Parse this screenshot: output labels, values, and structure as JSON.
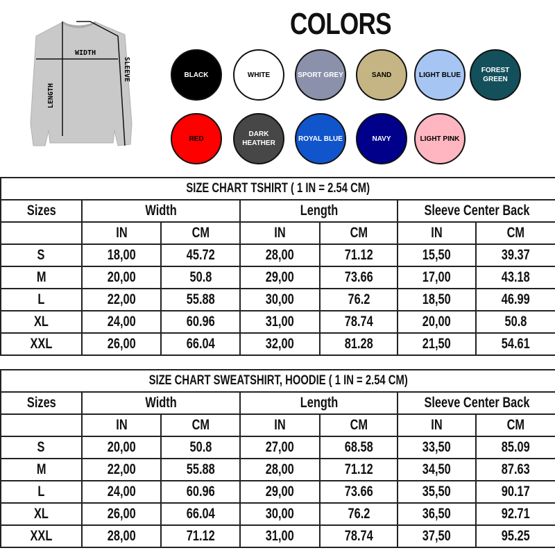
{
  "illustration": {
    "labels": {
      "width": "WIDTH",
      "length": "LENGTH",
      "sleeve": "SLEEVE"
    }
  },
  "colors": {
    "title": "COLORS",
    "swatches": [
      {
        "label": "BLACK",
        "fill": "#000000",
        "text": "#ffffff"
      },
      {
        "label": "WHITE",
        "fill": "#ffffff",
        "text": "#000000"
      },
      {
        "label": "SPORT GREY",
        "fill": "#8c91ab",
        "text": "#ffffff"
      },
      {
        "label": "SAND",
        "fill": "#c6b584",
        "text": "#000000"
      },
      {
        "label": "LIGHT BLUE",
        "fill": "#a6c5f2",
        "text": "#000000"
      },
      {
        "label": "FOREST GREEN",
        "fill": "#14505c",
        "text": "#ffffff"
      },
      {
        "label": "RED",
        "fill": "#ff0000",
        "text": "#000000"
      },
      {
        "label": "DARK HEATHER",
        "fill": "#474747",
        "text": "#ffffff"
      },
      {
        "label": "ROYAL BLUE",
        "fill": "#1155cc",
        "text": "#ffffff"
      },
      {
        "label": "NAVY",
        "fill": "#00008b",
        "text": "#ffffff"
      },
      {
        "label": "LIGHT PINK",
        "fill": "#ffb6c1",
        "text": "#000000"
      }
    ]
  },
  "tables": [
    {
      "title": "SIZE CHART TSHIRT ( 1 IN = 2.54 CM)",
      "headers": [
        "Sizes",
        "Width",
        "Length",
        "Sleeve Center Back"
      ],
      "units": [
        "IN",
        "CM",
        "IN",
        "CM",
        "IN",
        "CM"
      ],
      "rows": [
        [
          "S",
          "18,00",
          "45.72",
          "28,00",
          "71.12",
          "15,50",
          "39.37"
        ],
        [
          "M",
          "20,00",
          "50.8",
          "29,00",
          "73.66",
          "17,00",
          "43.18"
        ],
        [
          "L",
          "22,00",
          "55.88",
          "30,00",
          "76.2",
          "18,50",
          "46.99"
        ],
        [
          "XL",
          "24,00",
          "60.96",
          "31,00",
          "78.74",
          "20,00",
          "50.8"
        ],
        [
          "XXL",
          "26,00",
          "66.04",
          "32,00",
          "81.28",
          "21,50",
          "54.61"
        ]
      ]
    },
    {
      "title": "SIZE CHART  SWEATSHIRT,  HOODIE ( 1 IN = 2.54 CM)",
      "headers": [
        "Sizes",
        "Width",
        "Length",
        "Sleeve Center Back"
      ],
      "units": [
        "IN",
        "CM",
        "IN",
        "CM",
        "IN",
        "CM"
      ],
      "rows": [
        [
          "S",
          "20,00",
          "50.8",
          "27,00",
          "68.58",
          "33,50",
          "85.09"
        ],
        [
          "M",
          "22,00",
          "55.88",
          "28,00",
          "71.12",
          "34,50",
          "87.63"
        ],
        [
          "L",
          "24,00",
          "60.96",
          "29,00",
          "73.66",
          "35,50",
          "90.17"
        ],
        [
          "XL",
          "26,00",
          "66.04",
          "30,00",
          "76.2",
          "36,50",
          "92.71"
        ],
        [
          "XXL",
          "28,00",
          "71.12",
          "31,00",
          "78.74",
          "37,50",
          "95.25"
        ]
      ]
    }
  ]
}
